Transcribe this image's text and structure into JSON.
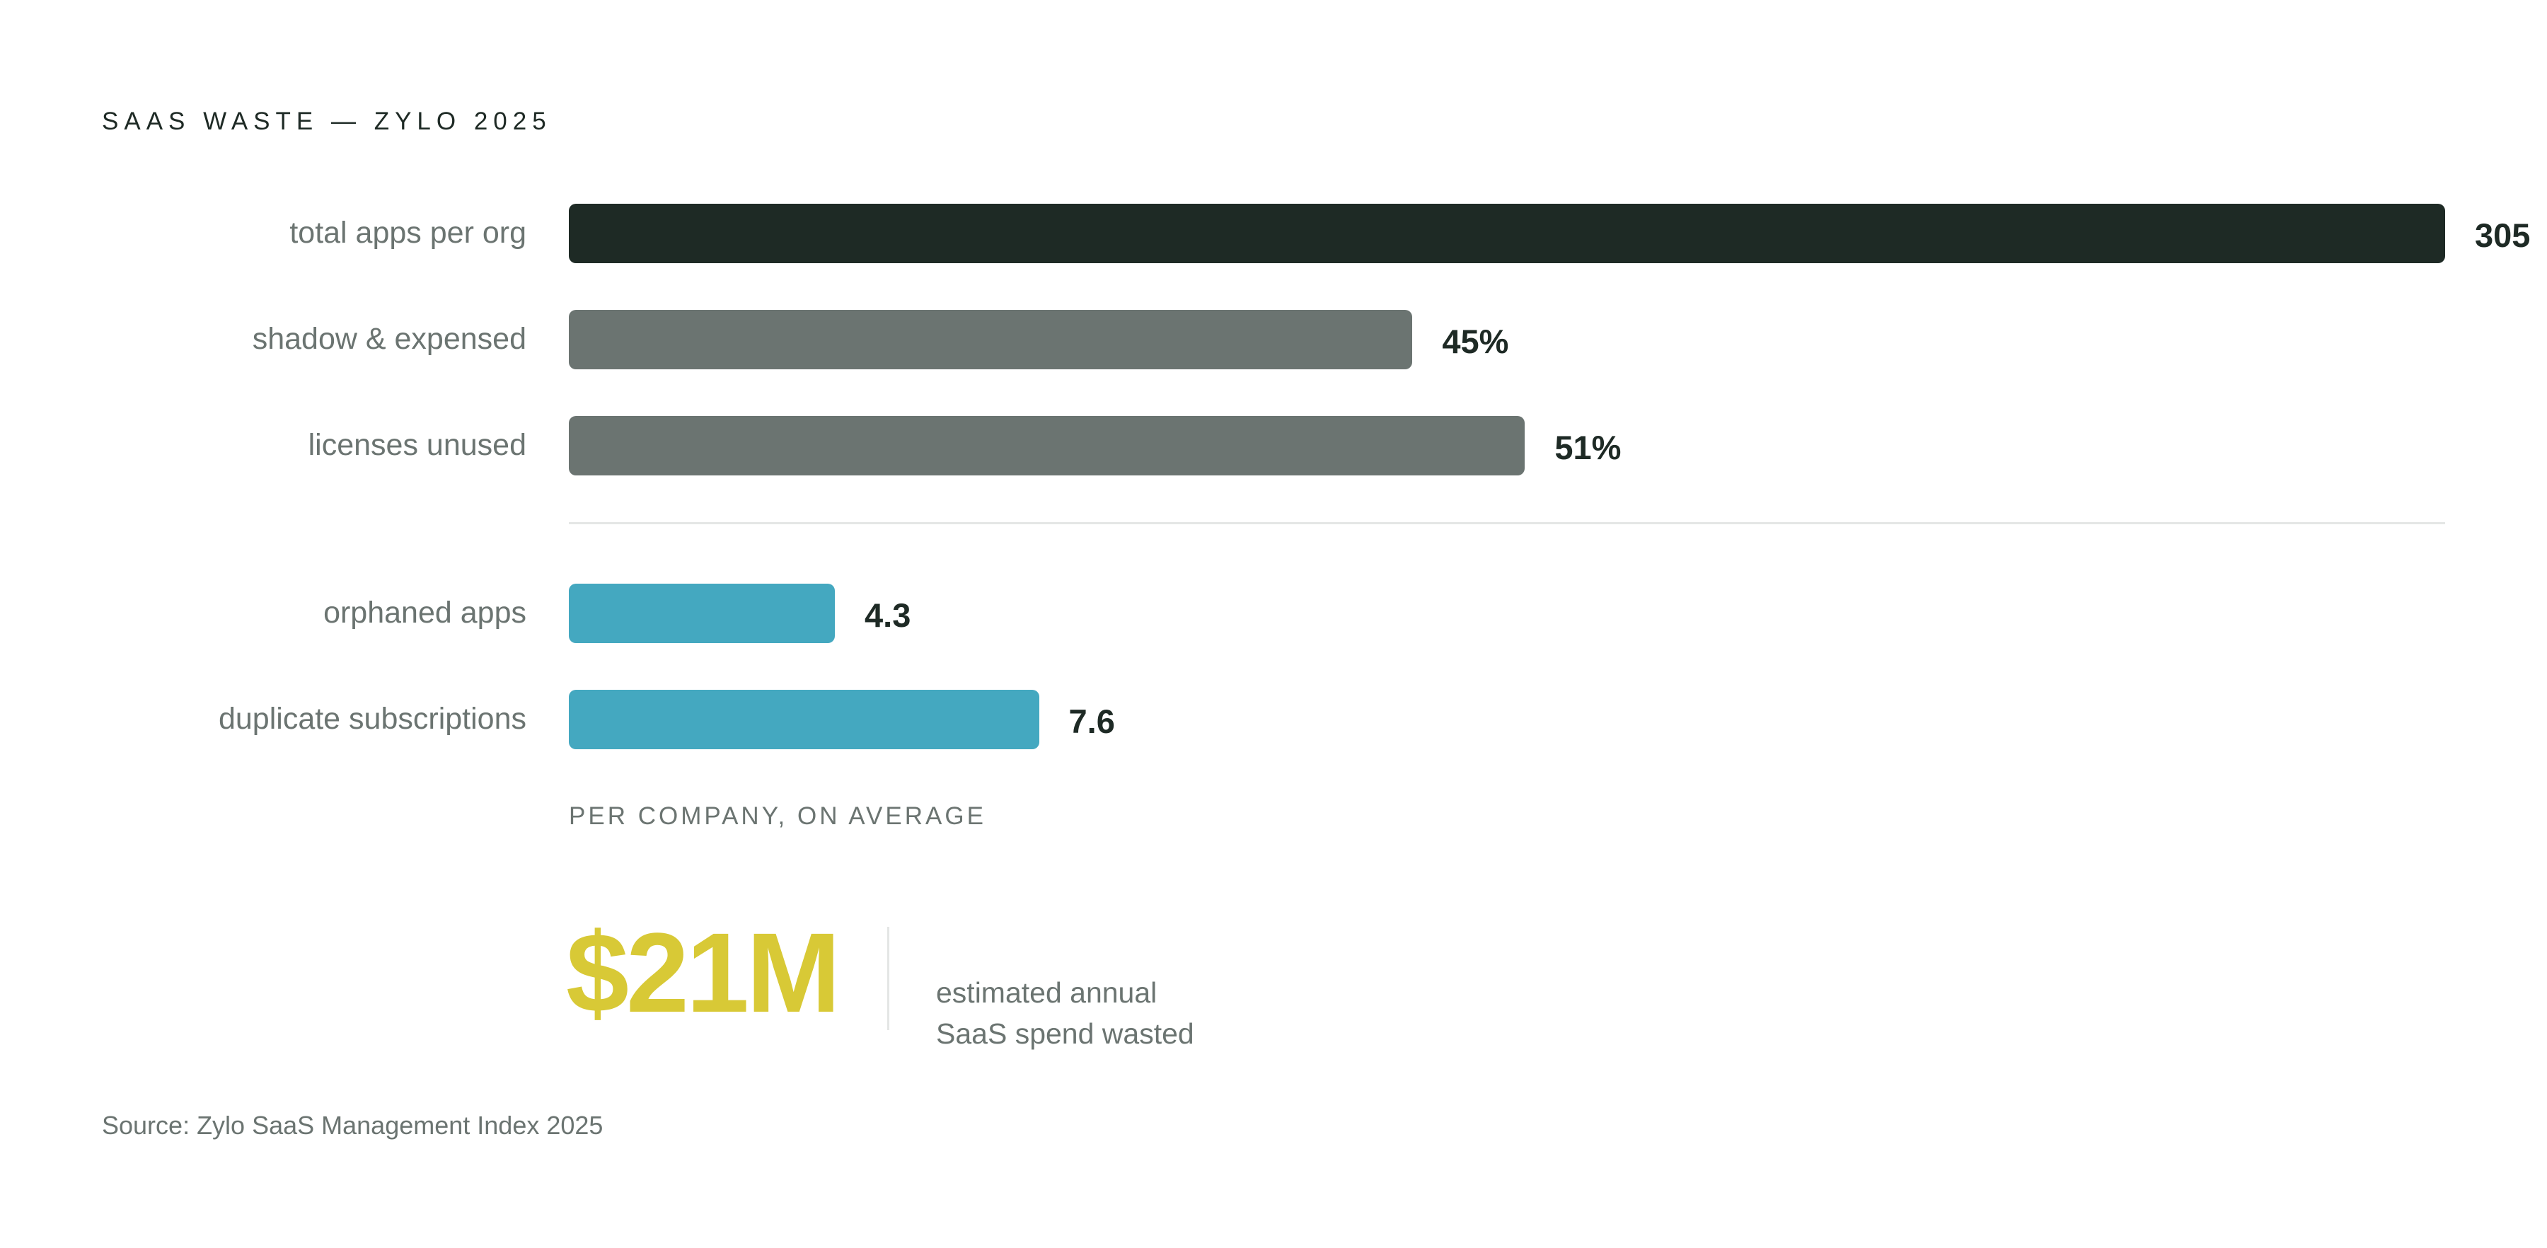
{
  "title": "SAAS WASTE — ZYLO 2025",
  "colors": {
    "primary": "#1e2a25",
    "secondary": "#6b7471",
    "accent": "#44a8c0",
    "highlight": "#d8c936"
  },
  "chart_data": {
    "type": "bar",
    "orientation": "horizontal",
    "title": "SAAS WASTE — ZYLO 2025",
    "groups": [
      {
        "bars": [
          {
            "label": "total apps per org",
            "value": 305,
            "display": "305",
            "color": "#1e2a25"
          },
          {
            "label": "shadow & expensed",
            "value": 45,
            "display": "45%",
            "color": "#6b7471"
          },
          {
            "label": "licenses unused",
            "value": 51,
            "display": "51%",
            "color": "#6b7471"
          }
        ]
      },
      {
        "bars": [
          {
            "label": "orphaned apps",
            "value": 4.3,
            "display": "4.3",
            "color": "#44a8c0"
          },
          {
            "label": "duplicate subscriptions",
            "value": 7.6,
            "display": "7.6",
            "color": "#44a8c0"
          }
        ],
        "note": "PER COMPANY, ON AVERAGE"
      }
    ],
    "grid": false,
    "legend": "none"
  },
  "kpi": {
    "value": "$21M",
    "description_line1": "estimated annual",
    "description_line2": "SaaS spend wasted"
  },
  "source": "Source: Zylo SaaS Management Index 2025"
}
